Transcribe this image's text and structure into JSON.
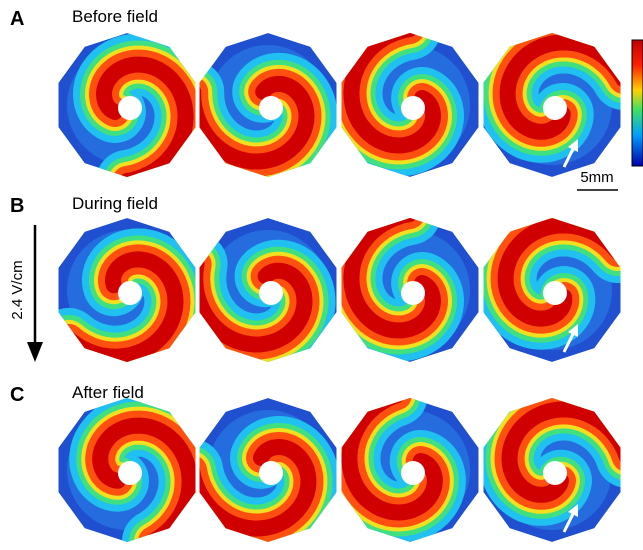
{
  "panels": [
    {
      "label": "A",
      "title": "Before field"
    },
    {
      "label": "B",
      "title": "During field"
    },
    {
      "label": "C",
      "title": "After field"
    }
  ],
  "field_label": "2.4 V/cm",
  "scale_bar": "5mm"
}
